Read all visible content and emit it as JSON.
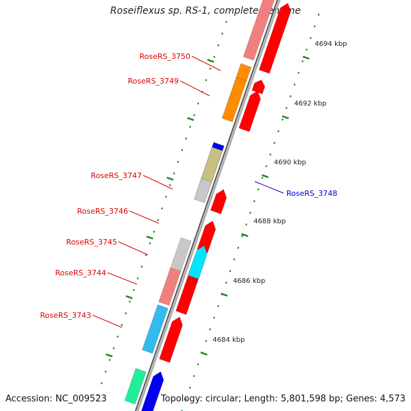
{
  "title": "Roseiflexus sp. RS-1, complete genome",
  "accession": "Accession: NC_009523",
  "topology": "Topology: circular; Length: 5,801,598 bp; Genes: 4,573",
  "colors": {
    "backbone": "#888888",
    "red": "#ff0000",
    "pink": "#f08080",
    "orange": "#ff8c00",
    "grey": "#c8c8c8",
    "cyan": "#00e5ff",
    "skyblue": "#33bbee",
    "blue": "#0000ee",
    "khaki": "#c8c080",
    "teal": "#22ee99",
    "tick": "#228822",
    "label_red": "#dd0000",
    "label_blue": "#0000cc"
  },
  "tick_labels": [
    "4694 kbp",
    "4692 kbp",
    "4690 kbp",
    "4688 kbp",
    "4686 kbp",
    "4684 kbp"
  ],
  "gene_labels": [
    {
      "text": "RoseRS_3750",
      "color": "label_red"
    },
    {
      "text": "RoseRS_3749",
      "color": "label_red"
    },
    {
      "text": "RoseRS_3747",
      "color": "label_red"
    },
    {
      "text": "RoseRS_3748",
      "color": "label_blue"
    },
    {
      "text": "RoseRS_3746",
      "color": "label_red"
    },
    {
      "text": "RoseRS_3745",
      "color": "label_red"
    },
    {
      "text": "RoseRS_3744",
      "color": "label_red"
    },
    {
      "text": "RoseRS_3743",
      "color": "label_red"
    }
  ]
}
